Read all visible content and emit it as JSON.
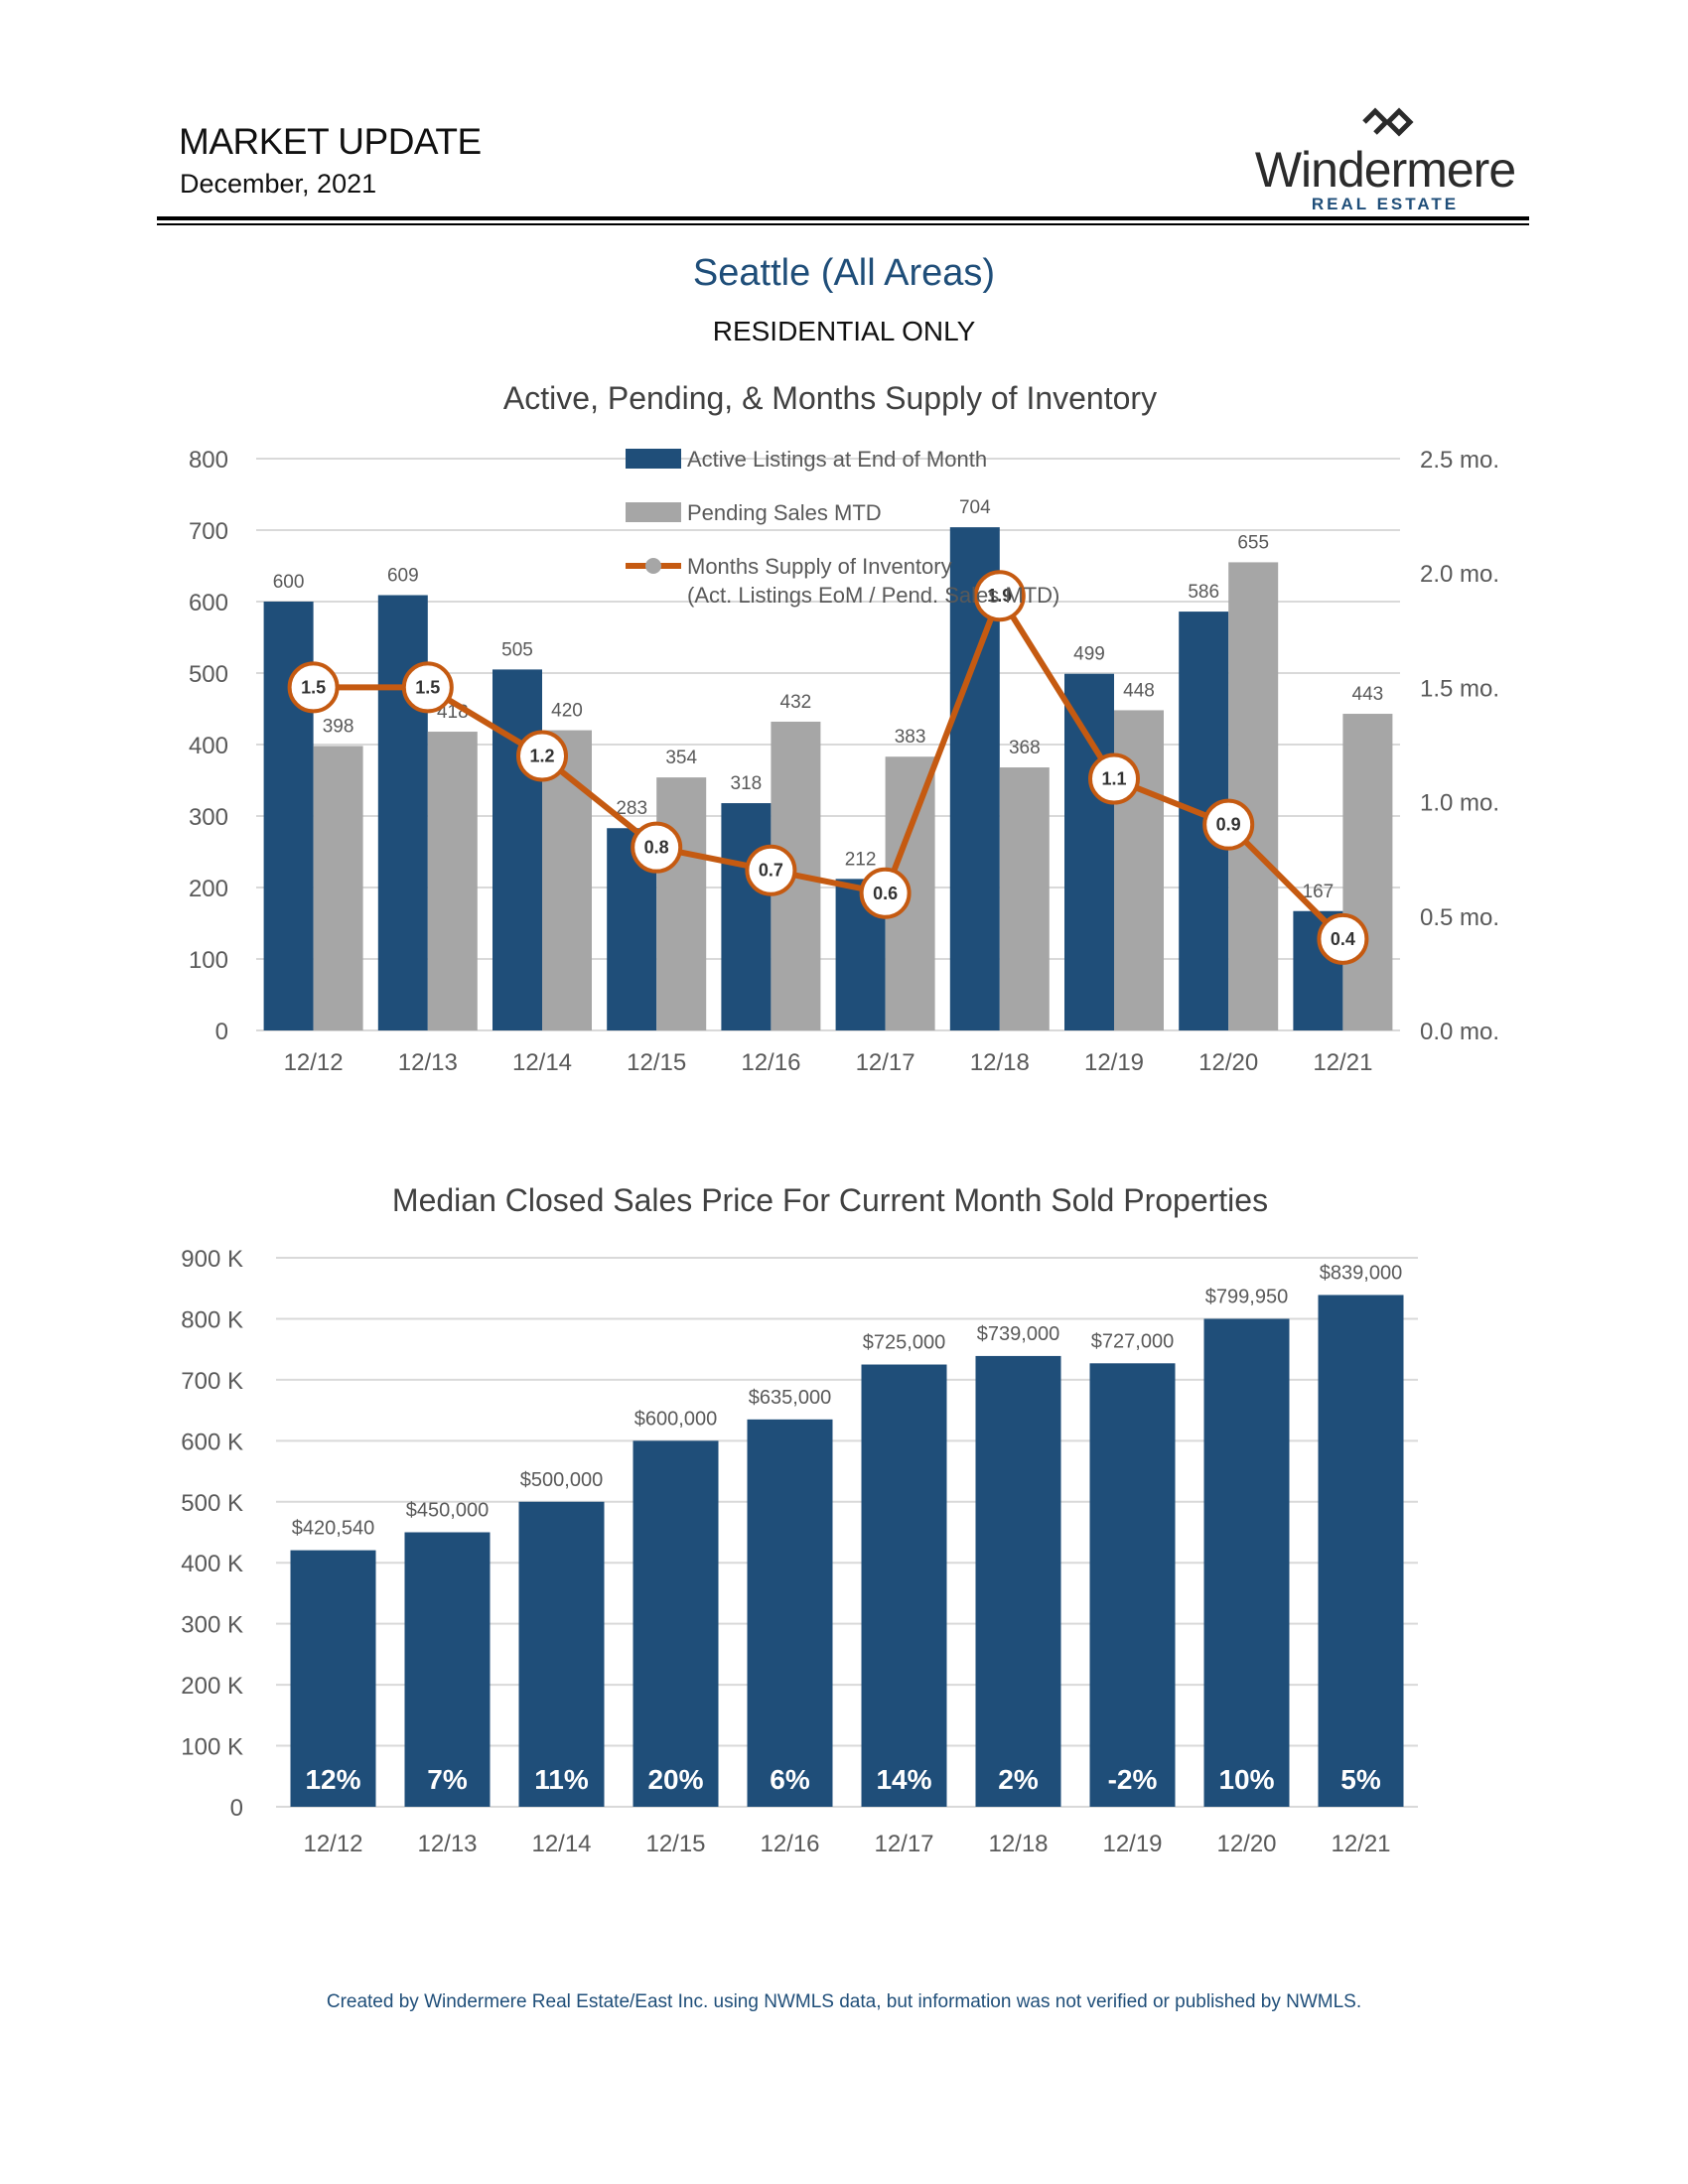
{
  "header": {
    "title": "MARKET UPDATE",
    "date": "December, 2021",
    "logo_word": "Windermere",
    "logo_sub": "REAL ESTATE"
  },
  "region": "Seattle (All Areas)",
  "subregion": "RESIDENTIAL ONLY",
  "footer": "Created by Windermere Real Estate/East Inc. using NWMLS data, but information was not verified or published by NWMLS.",
  "colors": {
    "active": "#1f4e79",
    "pending": "#a6a6a6",
    "supply": "#c55a11",
    "grid": "#d9d9d9",
    "axis_text": "#595959",
    "title_text": "#404040"
  },
  "chart_data": [
    {
      "type": "bar",
      "title": "Active, Pending, & Months Supply of Inventory",
      "categories": [
        "12/12",
        "12/13",
        "12/14",
        "12/15",
        "12/16",
        "12/17",
        "12/18",
        "12/19",
        "12/20",
        "12/21"
      ],
      "series": [
        {
          "name": "Active Listings at End of Month",
          "values": [
            600,
            609,
            505,
            283,
            318,
            212,
            704,
            499,
            586,
            167
          ]
        },
        {
          "name": "Pending Sales MTD",
          "values": [
            398,
            418,
            420,
            354,
            432,
            383,
            368,
            448,
            655,
            443
          ]
        },
        {
          "name": "Months Supply of Inventory",
          "legend_line2": "(Act. Listings EoM / Pend. Sales MTD)",
          "axis": "secondary",
          "type": "line",
          "values": [
            1.5,
            1.5,
            1.2,
            0.8,
            0.7,
            0.6,
            1.9,
            1.1,
            0.9,
            0.4
          ]
        }
      ],
      "ylim": [
        0,
        800
      ],
      "yticks": [
        "0",
        "100",
        "200",
        "300",
        "400",
        "500",
        "600",
        "700",
        "800"
      ],
      "y2lim": [
        0,
        2.5
      ],
      "y2ticks": [
        "0.0 mo.",
        "0.5 mo.",
        "1.0 mo.",
        "1.5 mo.",
        "2.0 mo.",
        "2.5 mo."
      ],
      "legend_position": "top-center"
    },
    {
      "type": "bar",
      "title": "Median Closed Sales Price For Current Month Sold Properties",
      "categories": [
        "12/12",
        "12/13",
        "12/14",
        "12/15",
        "12/16",
        "12/17",
        "12/18",
        "12/19",
        "12/20",
        "12/21"
      ],
      "values": [
        420540,
        450000,
        500000,
        600000,
        635000,
        725000,
        739000,
        727000,
        799950,
        839000
      ],
      "value_labels": [
        "$420,540",
        "$450,000",
        "$500,000",
        "$600,000",
        "$635,000",
        "$725,000",
        "$739,000",
        "$727,000",
        "$799,950",
        "$839,000"
      ],
      "change_labels": [
        "12%",
        "7%",
        "11%",
        "20%",
        "6%",
        "14%",
        "2%",
        "-2%",
        "10%",
        "5%"
      ],
      "ylim": [
        0,
        900000
      ],
      "yticks": [
        "0",
        "100 K",
        "200 K",
        "300 K",
        "400 K",
        "500 K",
        "600 K",
        "700 K",
        "800 K",
        "900 K"
      ]
    }
  ]
}
